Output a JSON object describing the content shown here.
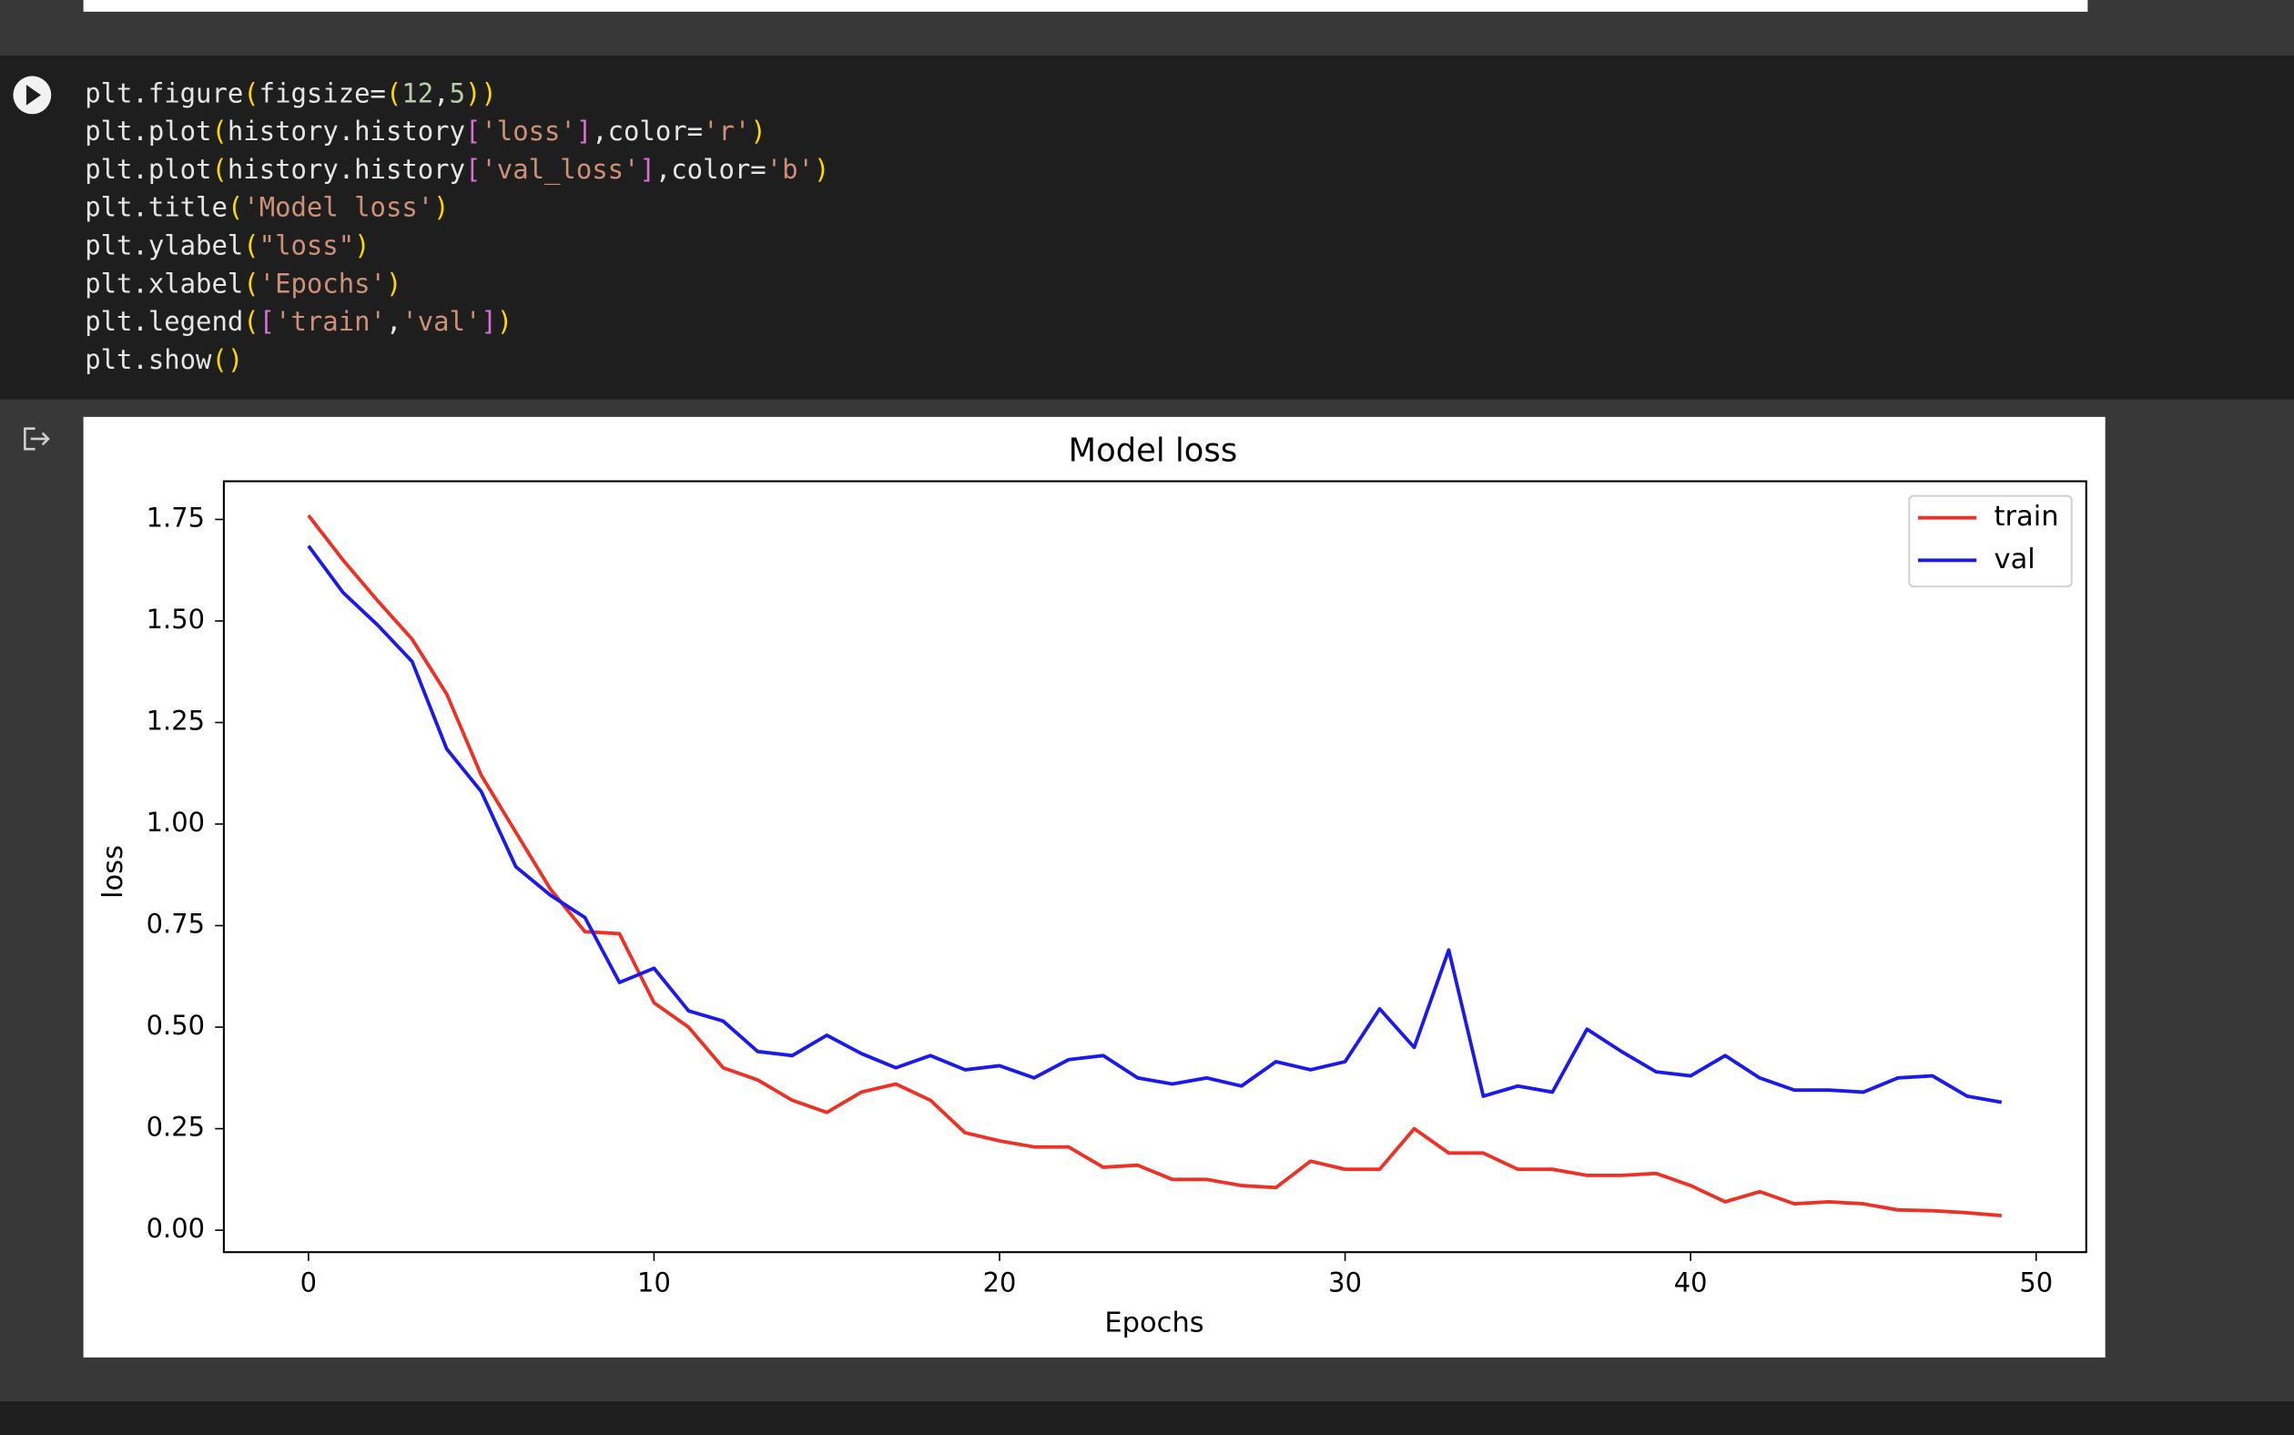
{
  "code": {
    "lines": [
      "plt.figure(figsize=(12,5))",
      "plt.plot(history.history['loss'],color='r')",
      "plt.plot(history.history['val_loss'],color='b')",
      "plt.title('Model loss')",
      "plt.ylabel(\"loss\")",
      "plt.xlabel('Epochs')",
      "plt.legend(['train','val'])",
      "plt.show()"
    ]
  },
  "chart_data": {
    "type": "line",
    "title": "Model loss",
    "xlabel": "Epochs",
    "ylabel": "loss",
    "x": [
      0,
      1,
      2,
      3,
      4,
      5,
      6,
      7,
      8,
      9,
      10,
      11,
      12,
      13,
      14,
      15,
      16,
      17,
      18,
      19,
      20,
      21,
      22,
      23,
      24,
      25,
      26,
      27,
      28,
      29,
      30,
      31,
      32,
      33,
      34,
      35,
      36,
      37,
      38,
      39,
      40,
      41,
      42,
      43,
      44,
      45,
      46,
      47,
      48,
      49
    ],
    "series": [
      {
        "name": "train",
        "color": "#ee3124",
        "values": [
          1.76,
          1.65,
          1.55,
          1.455,
          1.32,
          1.12,
          0.98,
          0.84,
          0.735,
          0.73,
          0.56,
          0.5,
          0.4,
          0.37,
          0.32,
          0.29,
          0.34,
          0.36,
          0.32,
          0.24,
          0.22,
          0.205,
          0.205,
          0.155,
          0.16,
          0.125,
          0.125,
          0.11,
          0.105,
          0.17,
          0.15,
          0.15,
          0.25,
          0.19,
          0.19,
          0.15,
          0.15,
          0.135,
          0.135,
          0.14,
          0.11,
          0.07,
          0.095,
          0.065,
          0.07,
          0.065,
          0.05,
          0.048,
          0.043,
          0.036
        ]
      },
      {
        "name": "val",
        "color": "#1a1aee",
        "values": [
          1.685,
          1.57,
          1.49,
          1.4,
          1.185,
          1.08,
          0.895,
          0.825,
          0.77,
          0.61,
          0.645,
          0.54,
          0.515,
          0.44,
          0.43,
          0.48,
          0.435,
          0.4,
          0.43,
          0.395,
          0.405,
          0.375,
          0.42,
          0.43,
          0.375,
          0.36,
          0.375,
          0.355,
          0.415,
          0.395,
          0.415,
          0.545,
          0.45,
          0.69,
          0.33,
          0.355,
          0.34,
          0.495,
          0.44,
          0.39,
          0.38,
          0.43,
          0.375,
          0.345,
          0.345,
          0.34,
          0.375,
          0.38,
          0.33,
          0.315
        ]
      }
    ],
    "xlim": [
      -2.45,
      51.45
    ],
    "ylim": [
      -0.054,
      1.844
    ],
    "xticks": [
      0,
      10,
      20,
      30,
      40,
      50
    ],
    "yticks": [
      {
        "value": 0,
        "label": "0.00"
      },
      {
        "value": 0.25,
        "label": "0.25"
      },
      {
        "value": 0.5,
        "label": "0.50"
      },
      {
        "value": 0.75,
        "label": "0.75"
      },
      {
        "value": 1,
        "label": "1.00"
      },
      {
        "value": 1.25,
        "label": "1.25"
      },
      {
        "value": 1.5,
        "label": "1.50"
      },
      {
        "value": 1.75,
        "label": "1.75"
      }
    ],
    "legend": "upper right"
  }
}
